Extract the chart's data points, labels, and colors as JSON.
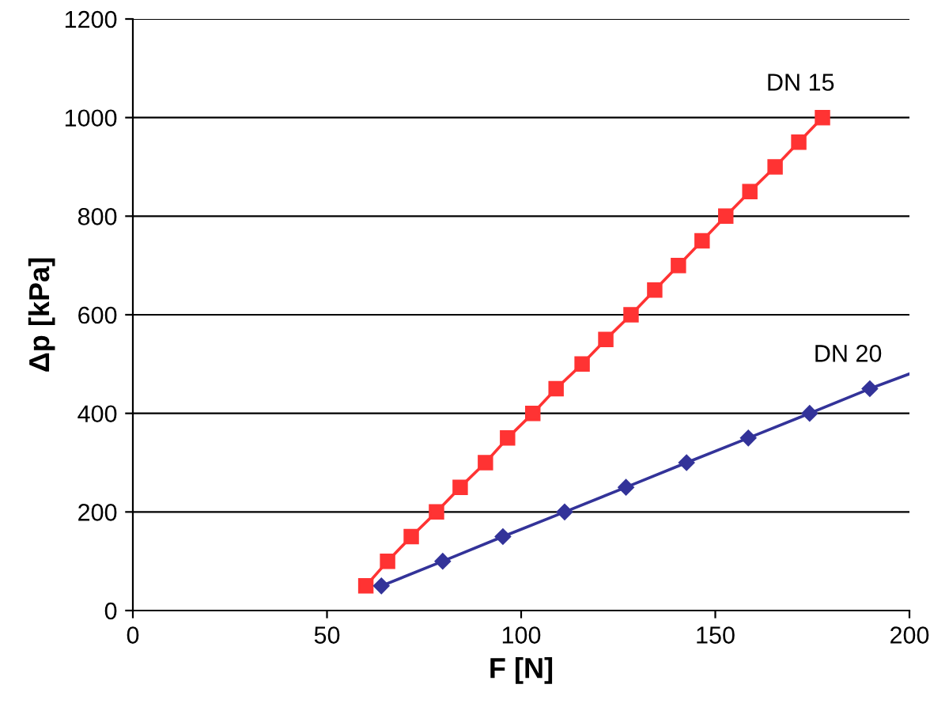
{
  "chart_data": {
    "type": "line",
    "xlabel": "F [N]",
    "ylabel": "Δp [kPa]",
    "xlim": [
      0,
      200
    ],
    "xticks": [
      0,
      50,
      100,
      150,
      200
    ],
    "ylim": [
      0,
      1200
    ],
    "yticks": [
      0,
      200,
      400,
      600,
      800,
      1000,
      1200
    ],
    "grid": "y",
    "line_style": "solid",
    "series": [
      {
        "name": "DN 15",
        "color": "#ff3333",
        "marker": "square",
        "x": [
          60,
          65.6,
          71.7,
          78.2,
          84.3,
          90.8,
          96.5,
          103,
          109,
          115.7,
          121.8,
          128.3,
          134.4,
          140.5,
          146.6,
          152.7,
          158.9,
          165.4,
          171.5,
          177.6
        ],
        "values": [
          50,
          100,
          150,
          200,
          250,
          300,
          350,
          400,
          450,
          500,
          550,
          600,
          650,
          700,
          750,
          800,
          850,
          900,
          950,
          1000
        ]
      },
      {
        "name": "DN 20",
        "color": "#333399",
        "marker": "diamond",
        "x": [
          64,
          79.8,
          95.3,
          111.2,
          127,
          142.6,
          158.5,
          174.3,
          189.8
        ],
        "values": [
          50,
          100,
          150,
          200,
          250,
          300,
          350,
          400,
          450
        ]
      },
      {
        "color": "#333399",
        "marker": "none",
        "x": [
          189.8,
          200
        ],
        "values": [
          450,
          480
        ]
      }
    ]
  }
}
